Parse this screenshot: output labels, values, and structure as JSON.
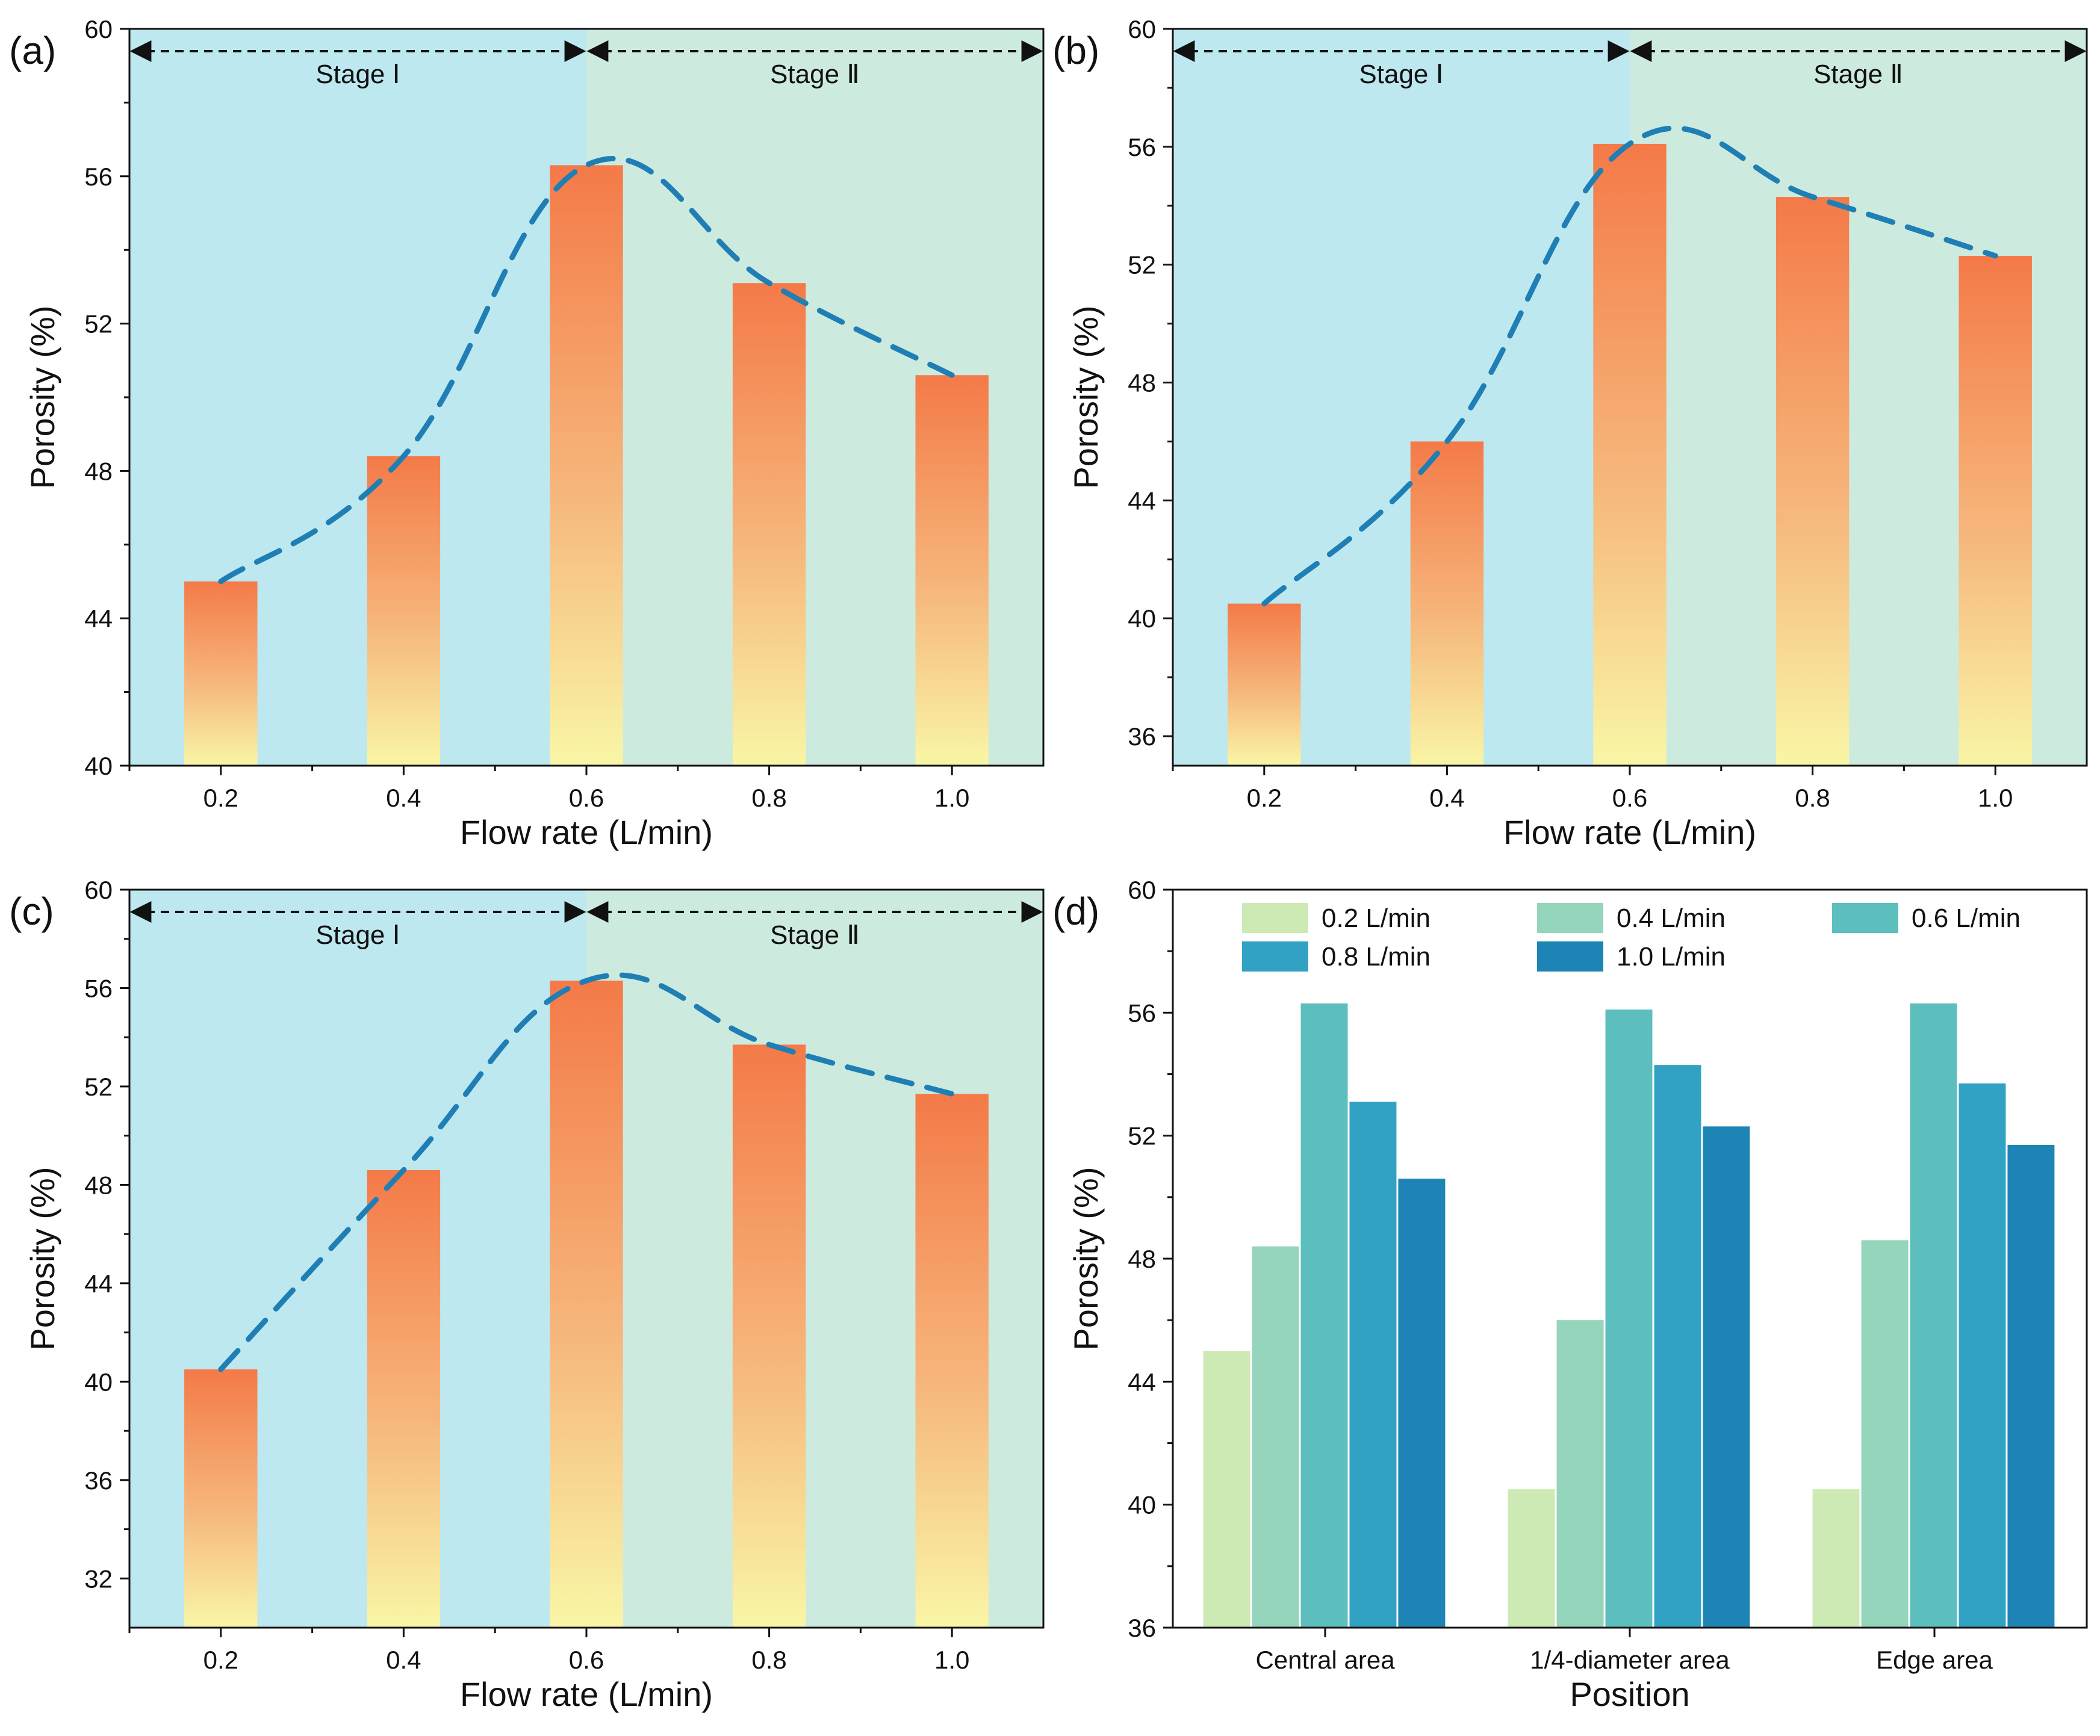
{
  "figure": {
    "colors": {
      "stage1_bg": "#bde8f0",
      "stage2_bg": "#cdeadf",
      "bar_top": "#f47a48",
      "bar_mid": "#f6b77c",
      "bar_bottom": "#f9f6a6",
      "trend_line": "#1f7fb5",
      "axis": "#111111"
    },
    "stage_labels": [
      "Stage Ⅰ",
      "Stage Ⅱ"
    ]
  },
  "chart_data": [
    {
      "id": "a",
      "panel_label": "(a)",
      "type": "bar",
      "categories": [
        "0.2",
        "0.4",
        "0.6",
        "0.8",
        "1.0"
      ],
      "values": [
        45.0,
        48.4,
        56.3,
        53.1,
        50.6
      ],
      "trend_line": true,
      "xlabel": "Flow rate (L/min)",
      "ylabel": "Porosity (%)",
      "ylim": [
        40,
        60
      ],
      "yticks": [
        "40",
        "44",
        "48",
        "52",
        "56",
        "60"
      ],
      "stage_split_category": "0.6"
    },
    {
      "id": "b",
      "panel_label": "(b)",
      "type": "bar",
      "categories": [
        "0.2",
        "0.4",
        "0.6",
        "0.8",
        "1.0"
      ],
      "values": [
        40.5,
        46.0,
        56.1,
        54.3,
        52.3
      ],
      "trend_line": true,
      "xlabel": "Flow rate (L/min)",
      "ylabel": "Porosity (%)",
      "ylim": [
        35,
        60
      ],
      "yticks": [
        "36",
        "40",
        "44",
        "48",
        "52",
        "56",
        "60"
      ],
      "stage_split_category": "0.6"
    },
    {
      "id": "c",
      "panel_label": "(c)",
      "type": "bar",
      "categories": [
        "0.2",
        "0.4",
        "0.6",
        "0.8",
        "1.0"
      ],
      "values": [
        40.5,
        48.6,
        56.3,
        53.7,
        51.7
      ],
      "trend_line": true,
      "xlabel": "Flow rate (L/min)",
      "ylabel": "Porosity (%)",
      "ylim": [
        30,
        60
      ],
      "yticks": [
        "32",
        "36",
        "40",
        "44",
        "48",
        "52",
        "56",
        "60"
      ],
      "stage_split_category": "0.6"
    },
    {
      "id": "d",
      "panel_label": "(d)",
      "type": "bar",
      "categories": [
        "Central area",
        "1/4-diameter area",
        "Edge area"
      ],
      "series": [
        {
          "name": "0.2 L/min",
          "color": "#cdeab5",
          "values": [
            45.0,
            40.5,
            40.5
          ]
        },
        {
          "name": "0.4 L/min",
          "color": "#94d5bb",
          "values": [
            48.4,
            46.0,
            48.6
          ]
        },
        {
          "name": "0.6 L/min",
          "color": "#5dbfbd",
          "values": [
            56.3,
            56.1,
            56.3
          ]
        },
        {
          "name": "0.8 L/min",
          "color": "#32a2c4",
          "values": [
            53.1,
            54.3,
            53.7
          ]
        },
        {
          "name": "1.0 L/min",
          "color": "#1e84b6",
          "values": [
            50.6,
            52.3,
            51.7
          ]
        }
      ],
      "xlabel": "Position",
      "ylabel": "Porosity (%)",
      "ylim": [
        36,
        60
      ],
      "yticks": [
        "36",
        "40",
        "44",
        "48",
        "52",
        "56",
        "60"
      ],
      "legend": "top"
    }
  ]
}
